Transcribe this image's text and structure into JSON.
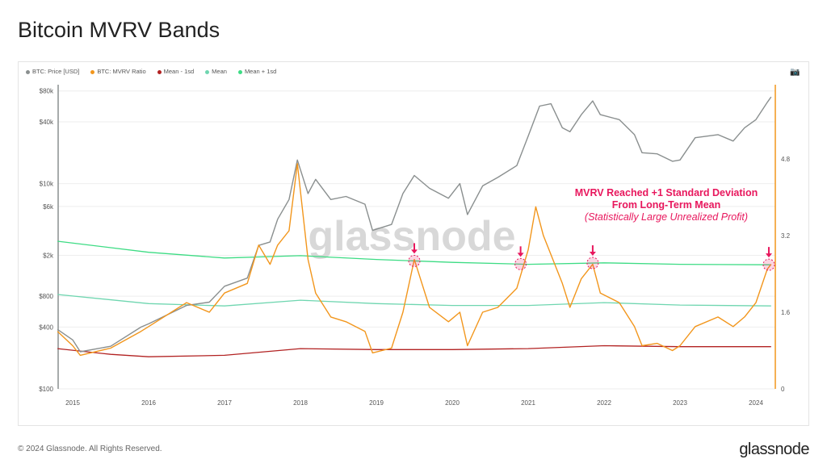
{
  "page": {
    "title": "Bitcoin MVRV Bands",
    "footer": "© 2024 Glassnode. All Rights Reserved.",
    "logo": "glassnode",
    "watermark": "glassnode",
    "camera_icon": "camera-icon"
  },
  "colors": {
    "price": "#8a8f8f",
    "mvrv": "#f2961c",
    "mean_minus": "#b22222",
    "mean": "#6fd6b0",
    "mean_plus": "#3ddc84",
    "annotation": "#e8175d"
  },
  "annotation": {
    "line1": "MVRV Reached +1 Standard Deviation",
    "line2": "From Long-Term Mean",
    "line3": "(Statistically Large Unrealized Profit)"
  },
  "chart_data": {
    "type": "line",
    "title": "Bitcoin MVRV Bands",
    "legend": [
      "BTC: Price [USD]",
      "BTC: MVRV Ratio",
      "Mean - 1sd",
      "Mean",
      "Mean + 1sd"
    ],
    "legend_position": "top-left",
    "x_ticks": [
      "2015",
      "2016",
      "2017",
      "2018",
      "2019",
      "2020",
      "2021",
      "2022",
      "2023",
      "2024"
    ],
    "xlim": [
      2014.8,
      2024.2
    ],
    "y_left": {
      "scale": "log",
      "ticks": [
        {
          "v": 80000,
          "l": "$80k"
        },
        {
          "v": 40000,
          "l": "$40k"
        },
        {
          "v": 10000,
          "l": "$10k"
        },
        {
          "v": 6000,
          "l": "$6k"
        },
        {
          "v": 2000,
          "l": "$2k"
        },
        {
          "v": 800,
          "l": "$800"
        },
        {
          "v": 400,
          "l": "$400"
        },
        {
          "v": 100,
          "l": "$100"
        }
      ],
      "ylim": [
        100,
        80000
      ]
    },
    "y_right": {
      "scale": "linear",
      "ticks": [
        {
          "v": 0,
          "l": "0"
        },
        {
          "v": 1.6,
          "l": "1.6"
        },
        {
          "v": 3.2,
          "l": "3.2"
        },
        {
          "v": 4.8,
          "l": "4.8"
        }
      ],
      "ylim": [
        0,
        6.2
      ]
    },
    "series": [
      {
        "name": "BTC: Price [USD]",
        "axis": "left",
        "points": [
          [
            2014.8,
            380
          ],
          [
            2015.0,
            300
          ],
          [
            2015.1,
            230
          ],
          [
            2015.5,
            260
          ],
          [
            2015.9,
            400
          ],
          [
            2016.0,
            430
          ],
          [
            2016.5,
            650
          ],
          [
            2016.8,
            700
          ],
          [
            2017.0,
            1000
          ],
          [
            2017.3,
            1200
          ],
          [
            2017.45,
            2500
          ],
          [
            2017.6,
            2700
          ],
          [
            2017.7,
            4500
          ],
          [
            2017.85,
            7000
          ],
          [
            2017.96,
            17000
          ],
          [
            2018.1,
            8000
          ],
          [
            2018.2,
            11000
          ],
          [
            2018.4,
            7000
          ],
          [
            2018.6,
            7500
          ],
          [
            2018.85,
            6300
          ],
          [
            2018.95,
            3500
          ],
          [
            2019.2,
            4000
          ],
          [
            2019.35,
            8000
          ],
          [
            2019.5,
            12000
          ],
          [
            2019.7,
            9000
          ],
          [
            2019.95,
            7200
          ],
          [
            2020.1,
            10000
          ],
          [
            2020.2,
            5000
          ],
          [
            2020.4,
            9500
          ],
          [
            2020.6,
            11500
          ],
          [
            2020.85,
            15000
          ],
          [
            2021.0,
            29000
          ],
          [
            2021.15,
            57000
          ],
          [
            2021.3,
            60000
          ],
          [
            2021.45,
            35000
          ],
          [
            2021.55,
            32000
          ],
          [
            2021.7,
            47000
          ],
          [
            2021.85,
            64000
          ],
          [
            2021.95,
            47000
          ],
          [
            2022.2,
            42000
          ],
          [
            2022.4,
            30000
          ],
          [
            2022.5,
            20000
          ],
          [
            2022.7,
            19500
          ],
          [
            2022.9,
            16500
          ],
          [
            2023.0,
            17000
          ],
          [
            2023.2,
            28000
          ],
          [
            2023.5,
            30000
          ],
          [
            2023.7,
            26000
          ],
          [
            2023.85,
            35000
          ],
          [
            2024.0,
            42000
          ],
          [
            2024.15,
            62000
          ],
          [
            2024.2,
            70000
          ]
        ]
      },
      {
        "name": "BTC: MVRV Ratio",
        "axis": "right",
        "points": [
          [
            2014.8,
            1.2
          ],
          [
            2015.0,
            0.9
          ],
          [
            2015.1,
            0.7
          ],
          [
            2015.5,
            0.85
          ],
          [
            2015.9,
            1.2
          ],
          [
            2016.0,
            1.3
          ],
          [
            2016.5,
            1.8
          ],
          [
            2016.8,
            1.6
          ],
          [
            2017.0,
            2.0
          ],
          [
            2017.3,
            2.2
          ],
          [
            2017.45,
            3.0
          ],
          [
            2017.6,
            2.6
          ],
          [
            2017.7,
            3.0
          ],
          [
            2017.85,
            3.3
          ],
          [
            2017.96,
            4.7
          ],
          [
            2018.1,
            2.7
          ],
          [
            2018.2,
            2.0
          ],
          [
            2018.4,
            1.5
          ],
          [
            2018.6,
            1.4
          ],
          [
            2018.85,
            1.2
          ],
          [
            2018.95,
            0.75
          ],
          [
            2019.2,
            0.85
          ],
          [
            2019.35,
            1.6
          ],
          [
            2019.5,
            2.7
          ],
          [
            2019.7,
            1.7
          ],
          [
            2019.95,
            1.4
          ],
          [
            2020.1,
            1.6
          ],
          [
            2020.2,
            0.9
          ],
          [
            2020.4,
            1.6
          ],
          [
            2020.6,
            1.7
          ],
          [
            2020.85,
            2.1
          ],
          [
            2021.0,
            2.9
          ],
          [
            2021.1,
            3.8
          ],
          [
            2021.2,
            3.2
          ],
          [
            2021.45,
            2.2
          ],
          [
            2021.55,
            1.7
          ],
          [
            2021.7,
            2.3
          ],
          [
            2021.85,
            2.6
          ],
          [
            2021.95,
            2.0
          ],
          [
            2022.2,
            1.8
          ],
          [
            2022.4,
            1.3
          ],
          [
            2022.5,
            0.9
          ],
          [
            2022.7,
            0.95
          ],
          [
            2022.9,
            0.8
          ],
          [
            2023.0,
            0.9
          ],
          [
            2023.2,
            1.3
          ],
          [
            2023.5,
            1.5
          ],
          [
            2023.7,
            1.3
          ],
          [
            2023.85,
            1.5
          ],
          [
            2024.0,
            1.8
          ],
          [
            2024.15,
            2.5
          ],
          [
            2024.2,
            2.6
          ]
        ]
      },
      {
        "name": "Mean - 1sd",
        "axis": "right",
        "points": [
          [
            2014.8,
            0.84
          ],
          [
            2015.5,
            0.72
          ],
          [
            2016.0,
            0.67
          ],
          [
            2017.0,
            0.7
          ],
          [
            2018.0,
            0.84
          ],
          [
            2019.0,
            0.82
          ],
          [
            2020.0,
            0.82
          ],
          [
            2021.0,
            0.84
          ],
          [
            2022.0,
            0.9
          ],
          [
            2023.0,
            0.88
          ],
          [
            2024.2,
            0.88
          ]
        ]
      },
      {
        "name": "Mean",
        "axis": "right",
        "points": [
          [
            2014.8,
            1.97
          ],
          [
            2016.0,
            1.78
          ],
          [
            2017.0,
            1.73
          ],
          [
            2018.0,
            1.85
          ],
          [
            2019.0,
            1.78
          ],
          [
            2020.0,
            1.74
          ],
          [
            2021.0,
            1.74
          ],
          [
            2022.0,
            1.8
          ],
          [
            2023.0,
            1.75
          ],
          [
            2024.2,
            1.73
          ]
        ]
      },
      {
        "name": "Mean + 1sd",
        "axis": "right",
        "points": [
          [
            2014.8,
            3.08
          ],
          [
            2016.0,
            2.85
          ],
          [
            2017.0,
            2.73
          ],
          [
            2018.0,
            2.78
          ],
          [
            2019.0,
            2.7
          ],
          [
            2020.0,
            2.64
          ],
          [
            2021.0,
            2.6
          ],
          [
            2022.0,
            2.63
          ],
          [
            2023.0,
            2.6
          ],
          [
            2024.2,
            2.59
          ]
        ]
      }
    ],
    "highlights": [
      2019.5,
      2020.9,
      2021.85,
      2024.17
    ]
  }
}
